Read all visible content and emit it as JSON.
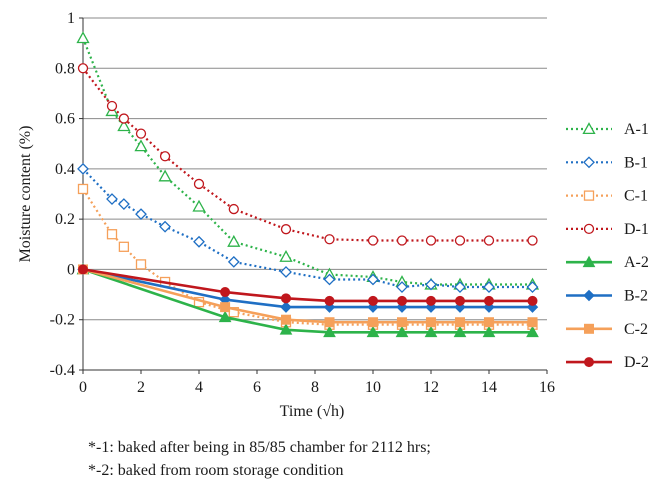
{
  "chart_data": {
    "type": "line",
    "xlabel": "Time (√h)",
    "ylabel": "Moisture content (%)",
    "xlim": [
      0,
      16
    ],
    "ylim": [
      -0.4,
      1
    ],
    "x_ticks": [
      "0",
      "2",
      "4",
      "6",
      "8",
      "10",
      "12",
      "14",
      "16"
    ],
    "y_ticks": [
      "-0.4",
      "-0.2",
      "0",
      "0.2",
      "0.4",
      "0.6",
      "0.8",
      "1"
    ],
    "grid": "horizontal",
    "legend_position": "right",
    "series": [
      {
        "name": "A-1",
        "color": "#2db34a",
        "line": "dotted",
        "marker": "triangle-open",
        "x": [
          0,
          1,
          1.41,
          2,
          2.83,
          4,
          5.2,
          7,
          8.5,
          10,
          11,
          12,
          13,
          14,
          15.5
        ],
        "y": [
          0.92,
          0.63,
          0.57,
          0.49,
          0.37,
          0.25,
          0.11,
          0.05,
          -0.02,
          -0.03,
          -0.05,
          -0.06,
          -0.06,
          -0.06,
          -0.06
        ]
      },
      {
        "name": "B-1",
        "color": "#1f6fc4",
        "line": "dotted",
        "marker": "diamond-open",
        "x": [
          0,
          1,
          1.41,
          2,
          2.83,
          4,
          5.2,
          7,
          8.5,
          10,
          11,
          12,
          13,
          14,
          15.5
        ],
        "y": [
          0.4,
          0.28,
          0.26,
          0.22,
          0.17,
          0.11,
          0.03,
          -0.01,
          -0.04,
          -0.04,
          -0.07,
          -0.06,
          -0.07,
          -0.07,
          -0.07
        ]
      },
      {
        "name": "C-1",
        "color": "#f5a05a",
        "line": "dotted",
        "marker": "square-open",
        "x": [
          0,
          1,
          1.41,
          2,
          2.83,
          4,
          5.2,
          7,
          8.5,
          10,
          11,
          12,
          13,
          14,
          15.5
        ],
        "y": [
          0.32,
          0.14,
          0.09,
          0.02,
          -0.05,
          -0.13,
          -0.17,
          -0.21,
          -0.22,
          -0.22,
          -0.22,
          -0.22,
          -0.22,
          -0.22,
          -0.22
        ]
      },
      {
        "name": "D-1",
        "color": "#c0171d",
        "line": "dotted",
        "marker": "circle-open",
        "x": [
          0,
          1,
          1.41,
          2,
          2.83,
          4,
          5.2,
          7,
          8.5,
          10,
          11,
          12,
          13,
          14,
          15.5
        ],
        "y": [
          0.8,
          0.65,
          0.6,
          0.54,
          0.45,
          0.34,
          0.24,
          0.16,
          0.12,
          0.115,
          0.115,
          0.115,
          0.115,
          0.115,
          0.115
        ]
      },
      {
        "name": "A-2",
        "color": "#2db34a",
        "line": "solid",
        "marker": "triangle-filled",
        "x": [
          0,
          4.9,
          7,
          8.5,
          10,
          11,
          12,
          13,
          14,
          15.5
        ],
        "y": [
          0,
          -0.19,
          -0.24,
          -0.25,
          -0.25,
          -0.25,
          -0.25,
          -0.25,
          -0.25,
          -0.25
        ]
      },
      {
        "name": "B-2",
        "color": "#1f6fc4",
        "line": "solid",
        "marker": "diamond-filled",
        "x": [
          0,
          4.9,
          7,
          8.5,
          10,
          11,
          12,
          13,
          14,
          15.5
        ],
        "y": [
          0,
          -0.12,
          -0.15,
          -0.15,
          -0.15,
          -0.15,
          -0.15,
          -0.15,
          -0.15,
          -0.15
        ]
      },
      {
        "name": "C-2",
        "color": "#f5a05a",
        "line": "solid",
        "marker": "square-filled",
        "x": [
          0,
          4.9,
          7,
          8.5,
          10,
          11,
          12,
          13,
          14,
          15.5
        ],
        "y": [
          0,
          -0.15,
          -0.2,
          -0.21,
          -0.21,
          -0.21,
          -0.21,
          -0.21,
          -0.21,
          -0.21
        ]
      },
      {
        "name": "D-2",
        "color": "#c0171d",
        "line": "solid",
        "marker": "circle-filled",
        "x": [
          0,
          4.9,
          7,
          8.5,
          10,
          11,
          12,
          13,
          14,
          15.5
        ],
        "y": [
          0,
          -0.09,
          -0.115,
          -0.125,
          -0.125,
          -0.125,
          -0.125,
          -0.125,
          -0.125,
          -0.125
        ]
      }
    ]
  },
  "notes": {
    "line1": "*-1: baked after being in 85/85 chamber for 2112 hrs;",
    "line2": "*-2: baked from room storage condition"
  }
}
